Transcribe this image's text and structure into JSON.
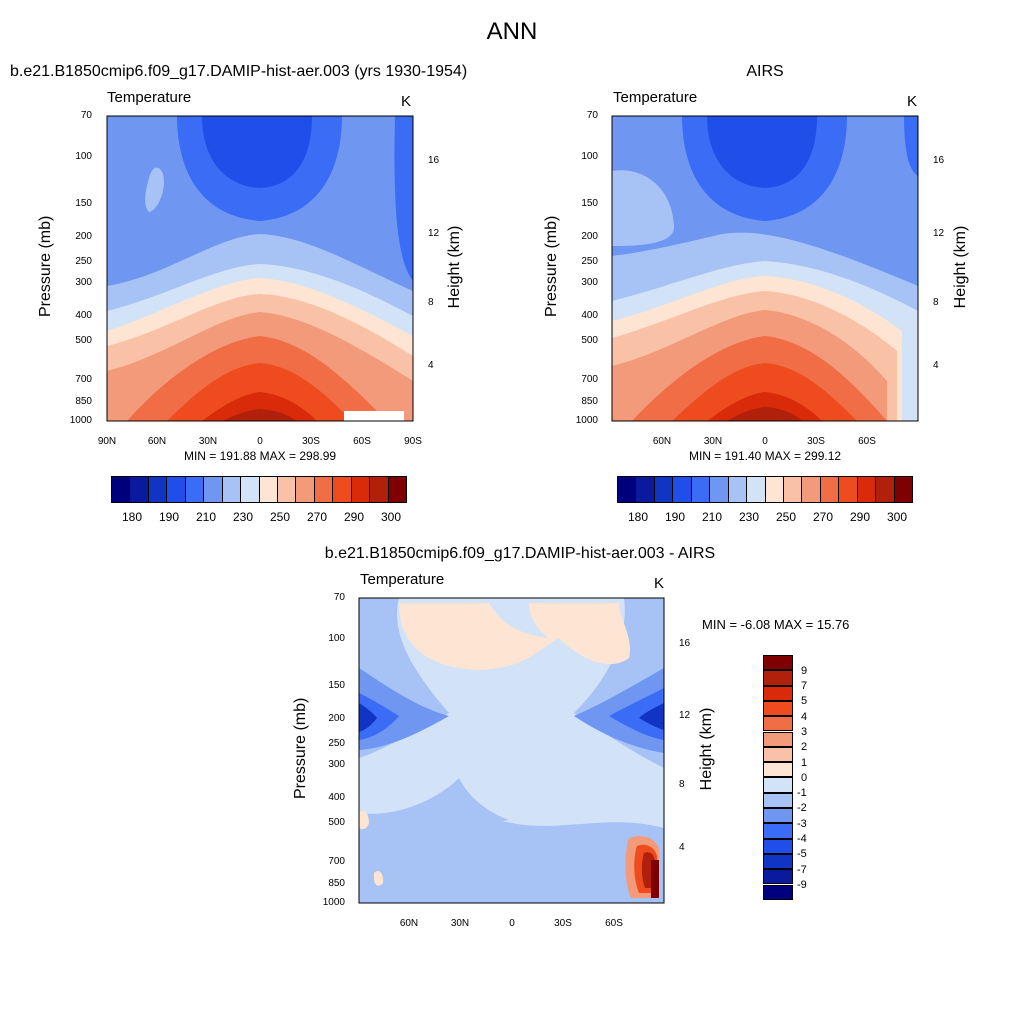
{
  "page_title": "ANN",
  "panel_left": {
    "subtitle": "b.e21.B1850cmip6.f09_g17.DAMIP-hist-aer.003 (yrs 1930-1954)",
    "variable": "Temperature",
    "units": "K",
    "minmax": "MIN = 191.88  MAX = 298.99"
  },
  "panel_right": {
    "subtitle": "AIRS",
    "variable": "Temperature",
    "units": "K",
    "minmax": "MIN = 191.40  MAX = 299.12"
  },
  "panel_diff": {
    "subtitle": "b.e21.B1850cmip6.f09_g17.DAMIP-hist-aer.003 - AIRS",
    "variable": "Temperature",
    "units": "K",
    "minmax": "MIN =  -6.08  MAX =  15.76"
  },
  "axes": {
    "ylabel_left": "Pressure (mb)",
    "ylabel_right": "Height (km)",
    "pressure_ticks": [
      "70",
      "100",
      "150",
      "200",
      "250",
      "300",
      "400",
      "500",
      "700",
      "850",
      "1000"
    ],
    "height_ticks": [
      "16",
      "12",
      "8",
      "4"
    ],
    "lat_ticks_left": [
      "90N",
      "60N",
      "30N",
      "0",
      "30S",
      "60S",
      "90S"
    ],
    "lat_ticks_right": [
      "60N",
      "30N",
      "0",
      "30S",
      "60S"
    ],
    "lat_ticks_diff": [
      "60N",
      "30N",
      "0",
      "30S",
      "60S"
    ]
  },
  "colorbar_abs": {
    "labels": [
      "180",
      "190",
      "210",
      "230",
      "250",
      "270",
      "290",
      "300"
    ],
    "colors": [
      "#00007f",
      "#0a1a9e",
      "#1035c4",
      "#1f4fe8",
      "#3a6cf5",
      "#6f97f2",
      "#a7c2f5",
      "#d2e3f8",
      "#fde4d3",
      "#f9c1a6",
      "#f39a7a",
      "#f06d46",
      "#ee4c1e",
      "#d92a0a",
      "#b0200a",
      "#7f0000"
    ]
  },
  "colorbar_diff": {
    "labels": [
      "9",
      "7",
      "5",
      "4",
      "3",
      "2",
      "1",
      "0",
      "-1",
      "-2",
      "-3",
      "-4",
      "-5",
      "-7",
      "-9"
    ],
    "colors": [
      "#7f0000",
      "#b0200a",
      "#d92a0a",
      "#ee4c1e",
      "#f06d46",
      "#f39a7a",
      "#f9c1a6",
      "#fde4d3",
      "#d2e3f8",
      "#a7c2f5",
      "#6f97f2",
      "#3a6cf5",
      "#1f4fe8",
      "#1035c4",
      "#0a1a9e",
      "#00007f"
    ]
  },
  "chart_data": [
    {
      "type": "heatmap",
      "title": "b.e21.B1850cmip6.f09_g17.DAMIP-hist-aer.003 (yrs 1930-1954)",
      "variable": "Temperature",
      "units": "K",
      "xlabel": "",
      "ylabel": "Pressure (mb)",
      "ylabel_right": "Height (km)",
      "x_ticks": [
        "90N",
        "60N",
        "30N",
        "0",
        "30S",
        "60S",
        "90S"
      ],
      "y_ticks": [
        70,
        100,
        150,
        200,
        250,
        300,
        400,
        500,
        700,
        850,
        1000
      ],
      "y_scale": "log",
      "min": 191.88,
      "max": 298.99,
      "colorbar_levels": [
        180,
        190,
        210,
        230,
        250,
        270,
        290,
        300
      ]
    },
    {
      "type": "heatmap",
      "title": "AIRS",
      "variable": "Temperature",
      "units": "K",
      "xlabel": "",
      "ylabel": "Pressure (mb)",
      "ylabel_right": "Height (km)",
      "x_ticks": [
        "60N",
        "30N",
        "0",
        "30S",
        "60S"
      ],
      "y_ticks": [
        70,
        100,
        150,
        200,
        250,
        300,
        400,
        500,
        700,
        850,
        1000
      ],
      "y_scale": "log",
      "min": 191.4,
      "max": 299.12,
      "colorbar_levels": [
        180,
        190,
        210,
        230,
        250,
        270,
        290,
        300
      ]
    },
    {
      "type": "heatmap",
      "title": "b.e21.B1850cmip6.f09_g17.DAMIP-hist-aer.003 - AIRS",
      "variable": "Temperature",
      "units": "K",
      "xlabel": "",
      "ylabel": "Pressure (mb)",
      "ylabel_right": "Height (km)",
      "x_ticks": [
        "60N",
        "30N",
        "0",
        "30S",
        "60S"
      ],
      "y_ticks": [
        70,
        100,
        150,
        200,
        250,
        300,
        400,
        500,
        700,
        850,
        1000
      ],
      "y_scale": "log",
      "min": -6.08,
      "max": 15.76,
      "colorbar_levels": [
        9,
        7,
        5,
        4,
        3,
        2,
        1,
        0,
        -1,
        -2,
        -3,
        -4,
        -5,
        -7,
        -9
      ]
    }
  ]
}
